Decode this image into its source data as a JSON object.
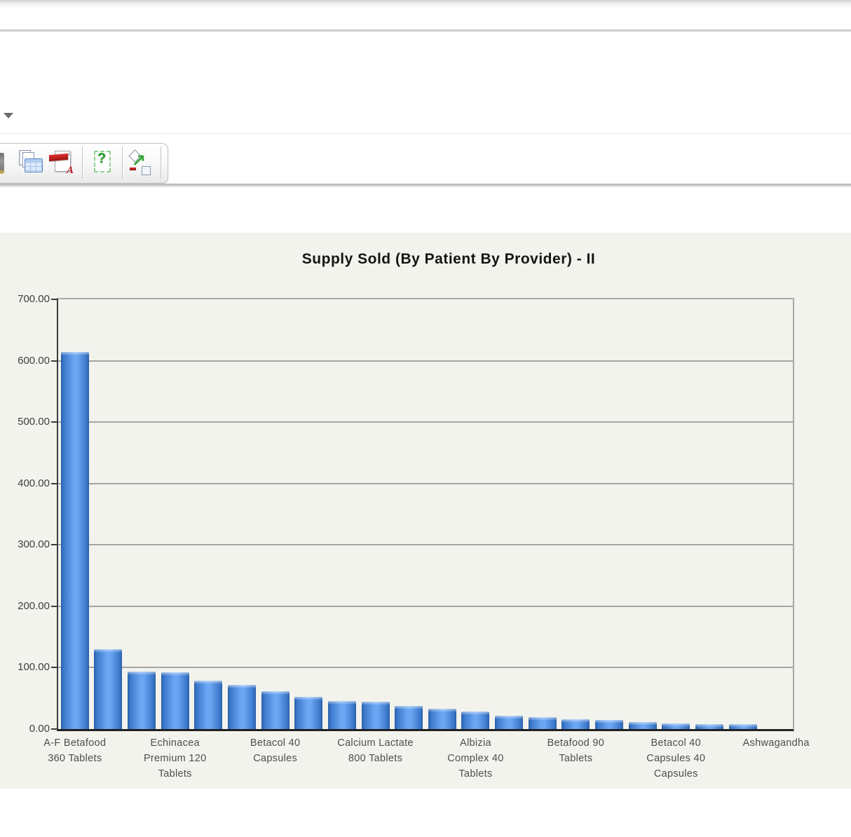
{
  "toolbar": {
    "icons": [
      {
        "name": "clipped-icon"
      },
      {
        "name": "export-spreadsheet-icon"
      },
      {
        "name": "export-pdf-icon"
      },
      {
        "name": "help-icon"
      },
      {
        "name": "resize-icon"
      }
    ],
    "pdf_glyph": "A",
    "help_glyph": "?",
    "resize_arrow_glyph": "↗",
    "dropdown_arrow_icon": "triangle-down"
  },
  "chart_data": {
    "type": "bar",
    "title": "Supply Sold (By Patient By Provider) - II",
    "xlabel": "",
    "ylabel": "",
    "ylim": [
      0,
      700
    ],
    "grid": true,
    "legend_position": "none",
    "bar_count": 22,
    "values": [
      614,
      130,
      94,
      92,
      79,
      72,
      62,
      52,
      46,
      44,
      38,
      33,
      28,
      22,
      19,
      16,
      15,
      11,
      9,
      8,
      8,
      0
    ],
    "y_tick_labels": [
      "700.00",
      "600.00",
      "500.00",
      "400.00",
      "300.00",
      "200.00",
      "100.00",
      "0.00"
    ],
    "x_tick_labels": [
      {
        "bar_index": 0,
        "lines": [
          "A-F Betafood",
          "360 Tablets"
        ]
      },
      {
        "bar_index": 3,
        "lines": [
          "Echinacea",
          "Premium 120",
          "Tablets"
        ]
      },
      {
        "bar_index": 6,
        "lines": [
          "Betacol 40",
          "Capsules"
        ]
      },
      {
        "bar_index": 9,
        "lines": [
          "Calcium Lactate",
          "800 Tablets"
        ]
      },
      {
        "bar_index": 12,
        "lines": [
          "Albizia",
          "Complex 40",
          "Tablets"
        ]
      },
      {
        "bar_index": 15,
        "lines": [
          "Betafood 90",
          "Tablets"
        ]
      },
      {
        "bar_index": 18,
        "lines": [
          "Betacol 40",
          "Capsules 40",
          "Capsules"
        ]
      },
      {
        "bar_index": 21,
        "lines": [
          "Ashwagandha"
        ]
      }
    ],
    "colors": {
      "bar_center": "#6aa6f2",
      "bar_mid": "#3c79cc",
      "bar_edge": "#2a5fa8",
      "panel_bg": "#f3f3ed",
      "gridline": "#a4a4a4",
      "axis": "#212121"
    }
  }
}
